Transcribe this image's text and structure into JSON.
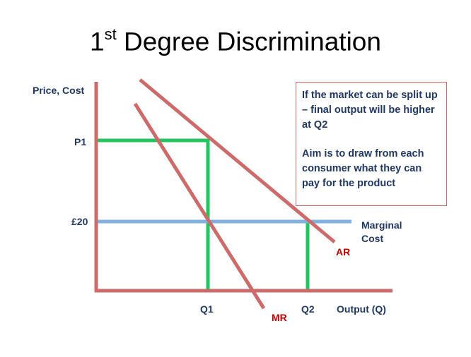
{
  "title": {
    "main": "1",
    "sup": "st",
    "rest": " Degree Discrimination"
  },
  "axes": {
    "y_label": "Price, Cost",
    "x_label": "Output (Q)"
  },
  "ticks": {
    "p1": "P1",
    "twenty": "£20",
    "q1": "Q1",
    "q2": "Q2"
  },
  "curves": {
    "mr": "MR",
    "ar": "AR",
    "mc_line1": "Marginal",
    "mc_line2": "Cost"
  },
  "note": {
    "para1": "If the market can be split up – final output will be higher at Q2",
    "para2": "Aim is to draw from each consumer what they can pay for the product"
  },
  "colors": {
    "axis": "#cd6b6b",
    "curve": "#cd6b6b",
    "green": "#22c55e",
    "blue": "#7fb0e0",
    "label": "#1f3864",
    "red_label": "#c00000"
  }
}
